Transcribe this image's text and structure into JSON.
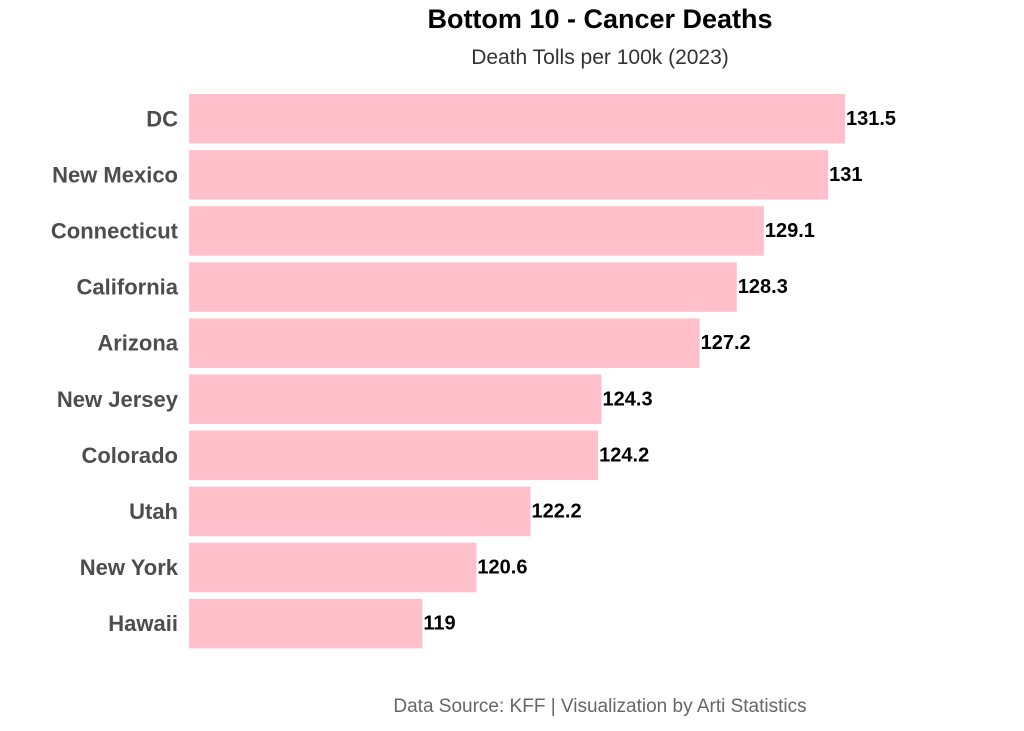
{
  "chart_data": {
    "type": "bar",
    "orientation": "horizontal",
    "title": "Bottom 10 - Cancer Deaths",
    "subtitle": "Death Tolls per 100k (2023)",
    "caption": "Data Source: KFF | Visualization by Arti Statistics",
    "xlabel": "",
    "ylabel": "",
    "categories": [
      "DC",
      "New Mexico",
      "Connecticut",
      "California",
      "Arizona",
      "New Jersey",
      "Colorado",
      "Utah",
      "New York",
      "Hawaii"
    ],
    "values": [
      131.5,
      131,
      129.1,
      128.3,
      127.2,
      124.3,
      124.2,
      122.2,
      120.6,
      119
    ],
    "value_labels": [
      "131.5",
      "131",
      "129.1",
      "128.3",
      "127.2",
      "124.3",
      "124.2",
      "122.2",
      "120.6",
      "119"
    ],
    "xlim": [
      112.1,
      131.5
    ],
    "grid": false,
    "legend": "none",
    "bar_color": "#FFC0CB"
  }
}
